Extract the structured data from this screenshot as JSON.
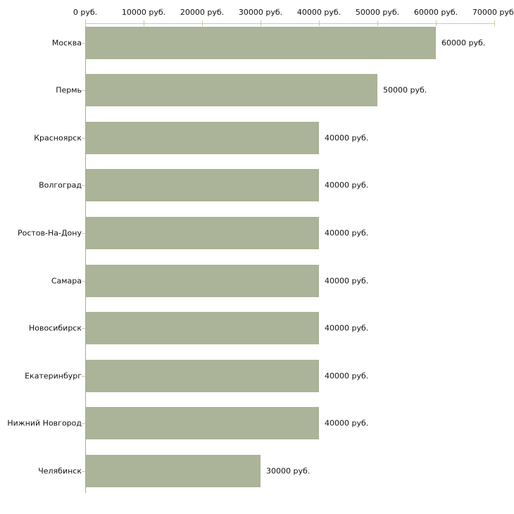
{
  "chart_data": {
    "type": "bar",
    "orientation": "horizontal",
    "title": "",
    "xlabel": "",
    "ylabel": "",
    "unit": "руб.",
    "categories": [
      "Москва",
      "Пермь",
      "Красноярск",
      "Волгоград",
      "Ростов-На-Дону",
      "Самара",
      "Новосибирск",
      "Екатеринбург",
      "Нижний Новгород",
      "Челябинск"
    ],
    "values": [
      60000,
      50000,
      40000,
      40000,
      40000,
      40000,
      40000,
      40000,
      40000,
      30000
    ],
    "value_labels": [
      "60000 руб.",
      "50000 руб.",
      "40000 руб.",
      "40000 руб.",
      "40000 руб.",
      "40000 руб.",
      "40000 руб.",
      "40000 руб.",
      "40000 руб.",
      "30000 руб."
    ],
    "x_axis": {
      "position": "top",
      "min": 0,
      "max": 70000,
      "ticks": [
        0,
        10000,
        20000,
        30000,
        40000,
        50000,
        60000,
        70000
      ],
      "tick_labels": [
        "0 руб.",
        "10000 руб.",
        "20000 руб.",
        "30000 руб.",
        "40000 руб.",
        "50000 руб.",
        "60000 руб.",
        "70000 руб."
      ]
    },
    "grid": false,
    "legend": false,
    "colors": {
      "bar": "#abb398",
      "x_axis_line": "#c9c9c9",
      "y_axis_line": "#a9a9a9",
      "tick_mark": "#cecb9e",
      "text": "#111111",
      "background": "#ffffff"
    }
  }
}
